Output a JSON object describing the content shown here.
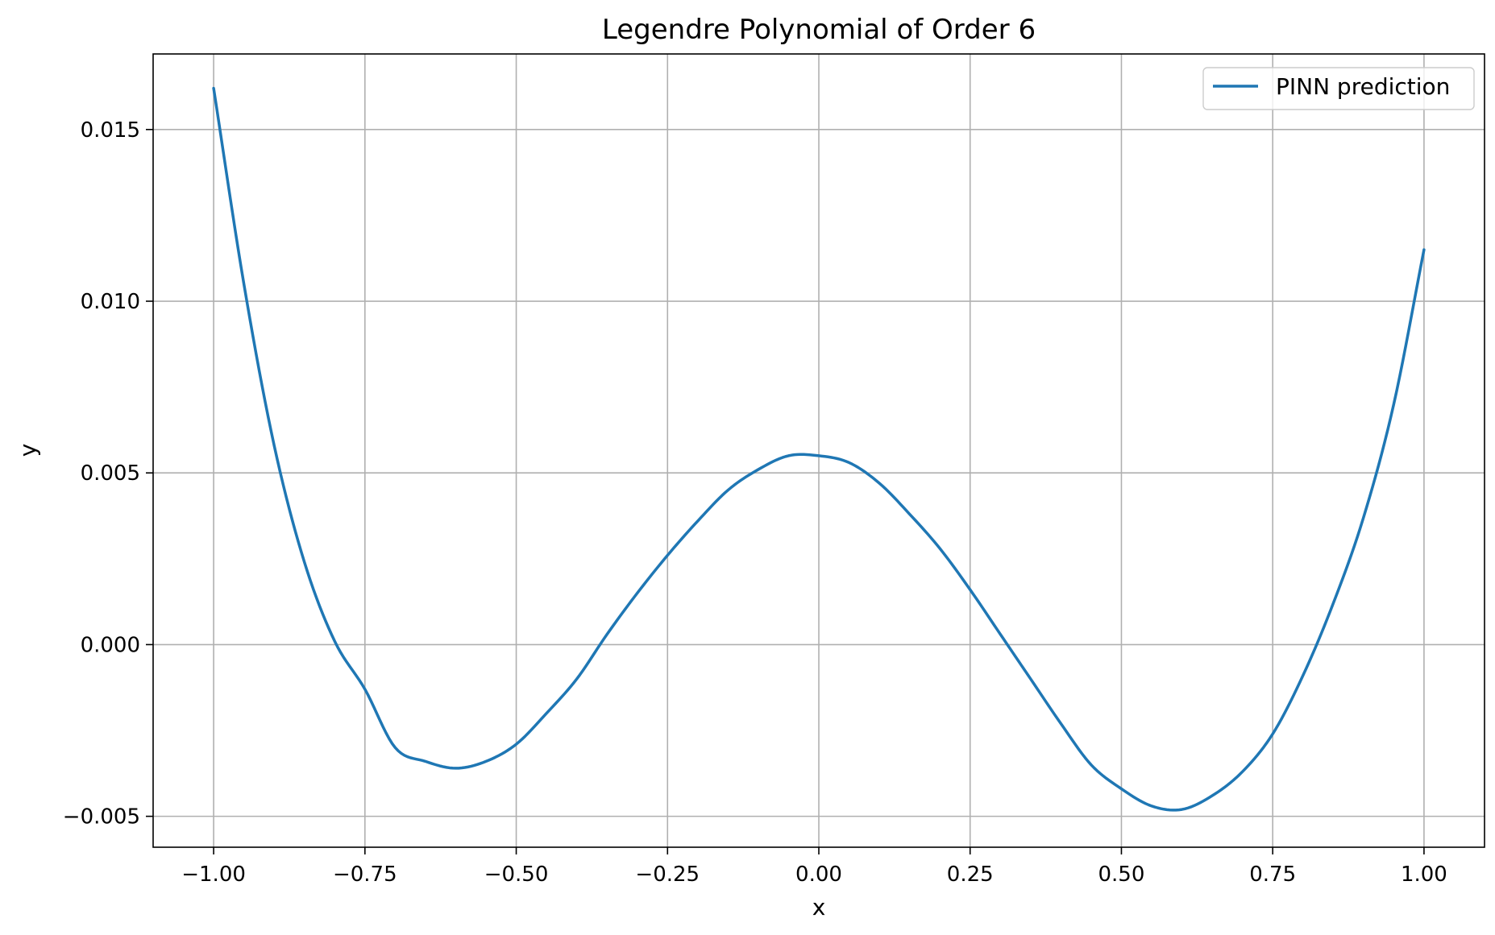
{
  "chart_data": {
    "type": "line",
    "title": "Legendre Polynomial of Order 6",
    "xlabel": "x",
    "ylabel": "y",
    "xlim": [
      -1.1,
      1.1
    ],
    "ylim": [
      -0.0059,
      0.0172
    ],
    "xticks": [
      -1.0,
      -0.75,
      -0.5,
      -0.25,
      0.0,
      0.25,
      0.5,
      0.75,
      1.0
    ],
    "xtick_labels": [
      "−1.00",
      "−0.75",
      "−0.50",
      "−0.25",
      "0.00",
      "0.25",
      "0.50",
      "0.75",
      "1.00"
    ],
    "yticks": [
      -0.005,
      0.0,
      0.005,
      0.01,
      0.015
    ],
    "ytick_labels": [
      "−0.005",
      "0.000",
      "0.005",
      "0.010",
      "0.015"
    ],
    "grid": true,
    "legend_position": "top-right",
    "series": [
      {
        "name": "PINN prediction",
        "color": "#1f77b4",
        "x": [
          -1.0,
          -0.95,
          -0.9,
          -0.85,
          -0.8,
          -0.75,
          -0.7,
          -0.65,
          -0.6,
          -0.55,
          -0.5,
          -0.45,
          -0.4,
          -0.35,
          -0.3,
          -0.25,
          -0.2,
          -0.15,
          -0.1,
          -0.05,
          0.0,
          0.05,
          0.1,
          0.15,
          0.2,
          0.25,
          0.3,
          0.35,
          0.4,
          0.45,
          0.5,
          0.55,
          0.6,
          0.65,
          0.7,
          0.75,
          0.8,
          0.85,
          0.9,
          0.95,
          1.0
        ],
        "y": [
          0.0162,
          0.0105,
          0.0058,
          0.0024,
          0.0001,
          -0.0013,
          -0.003,
          -0.0034,
          -0.0036,
          -0.0034,
          -0.0029,
          -0.002,
          -0.001,
          0.0003,
          0.0015,
          0.0026,
          0.0036,
          0.0045,
          0.0051,
          0.0055,
          0.0055,
          0.0053,
          0.0047,
          0.0038,
          0.0028,
          0.0016,
          0.0003,
          -0.001,
          -0.0023,
          -0.0035,
          -0.0042,
          -0.0047,
          -0.0048,
          -0.0044,
          -0.0037,
          -0.0026,
          -0.0009,
          0.0012,
          0.0037,
          0.007,
          0.0115
        ]
      }
    ]
  }
}
